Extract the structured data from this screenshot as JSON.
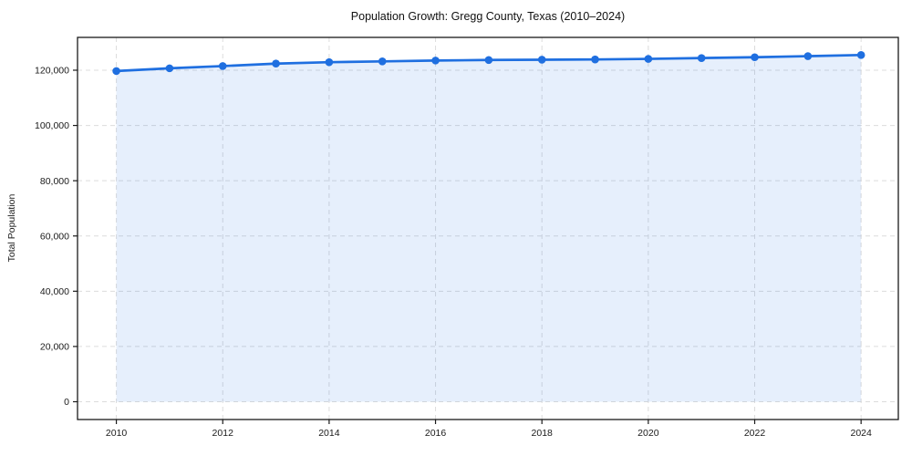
{
  "figure": {
    "title": "Population Growth: Gregg County, Texas (2010–2024)",
    "y_axis_label": "Total Population"
  },
  "chart_data": {
    "type": "line",
    "title": "Population Growth: Gregg County, Texas (2010–2024)",
    "xlabel": "",
    "ylabel": "Total Population",
    "x": [
      2010,
      2011,
      2012,
      2013,
      2014,
      2015,
      2016,
      2017,
      2018,
      2019,
      2020,
      2021,
      2022,
      2023,
      2024
    ],
    "values": [
      119700,
      120700,
      121500,
      122400,
      122900,
      123200,
      123500,
      123700,
      123800,
      123900,
      124100,
      124400,
      124700,
      125100,
      125500
    ],
    "series_name": "Total Population",
    "x_ticks": [
      2010,
      2012,
      2014,
      2016,
      2018,
      2020,
      2022,
      2024
    ],
    "x_tick_labels": [
      "2010",
      "2012",
      "2014",
      "2016",
      "2018",
      "2020",
      "2022",
      "2024"
    ],
    "y_ticks": [
      0,
      20000,
      40000,
      60000,
      80000,
      100000,
      120000
    ],
    "y_tick_labels": [
      "0",
      "20,000",
      "40,000",
      "60,000",
      "80,000",
      "100,000",
      "120,000"
    ],
    "xlim": [
      2009.27,
      2024.7
    ],
    "ylim": [
      -6440,
      131880
    ],
    "grid": true,
    "grid_style": "dashed",
    "legend": false,
    "marker": "circle",
    "colors": {
      "line": "#1f6fe0",
      "marker": "#1f6fe0",
      "fill": "rgba(31,111,224,0.11)",
      "grid": "#dcdcdc",
      "frame": "#1a1a1a",
      "tick_text": "#1a1a1a",
      "title_text": "#111111",
      "background": "#ffffff"
    }
  }
}
